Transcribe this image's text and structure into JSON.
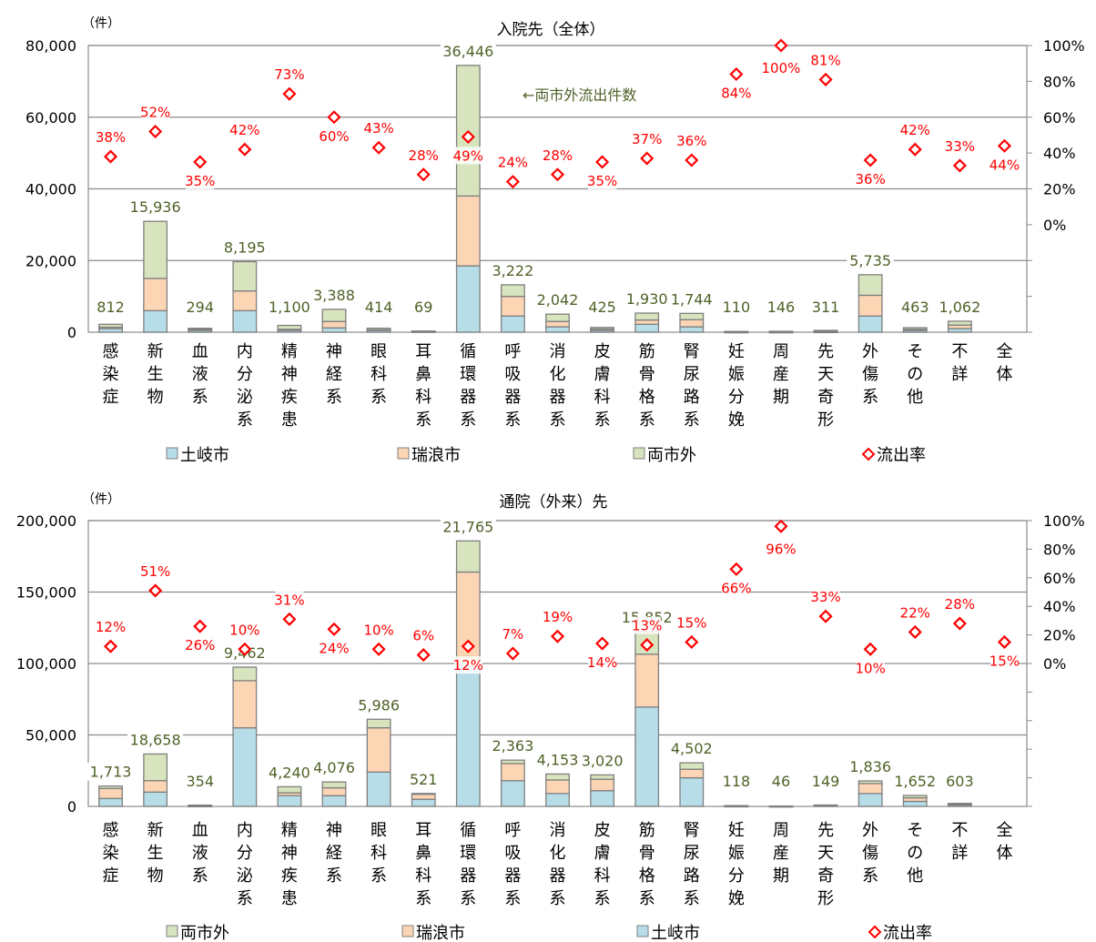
{
  "legend_markers": {
    "square": "□",
    "diamond": "◇"
  },
  "chart_data": [
    {
      "type": "bar",
      "stacked": true,
      "title": "入院先（全体）",
      "unit_label": "（件）",
      "categories": [
        [
          "感",
          "染",
          "症"
        ],
        [
          "新",
          "生",
          "物"
        ],
        [
          "血",
          "液",
          "系"
        ],
        [
          "内",
          "分",
          "泌",
          "系"
        ],
        [
          "精",
          "神",
          "疾",
          "患"
        ],
        [
          "神",
          "経",
          "系"
        ],
        [
          "眼",
          "科",
          "系"
        ],
        [
          "耳",
          "鼻",
          "科",
          "系"
        ],
        [
          "循",
          "環",
          "器",
          "系"
        ],
        [
          "呼",
          "吸",
          "器",
          "系"
        ],
        [
          "消",
          "化",
          "器",
          "系"
        ],
        [
          "皮",
          "膚",
          "科",
          "系"
        ],
        [
          "筋",
          "骨",
          "格",
          "系"
        ],
        [
          "腎",
          "尿",
          "路",
          "系"
        ],
        [
          "妊",
          "娠",
          "分",
          "娩"
        ],
        [
          "周",
          "産",
          "期"
        ],
        [
          "先",
          "天",
          "奇",
          "形"
        ],
        [
          "外",
          "傷",
          "系"
        ],
        [
          "そ",
          "の",
          "他"
        ],
        [
          "不",
          "詳"
        ],
        [
          "全",
          "体"
        ]
      ],
      "series": [
        {
          "name": "土岐市",
          "color": "#b7dde8",
          "values": [
            1000,
            6000,
            500,
            6000,
            500,
            1200,
            500,
            150,
            18500,
            4500,
            1500,
            500,
            2200,
            1500,
            50,
            50,
            100,
            4500,
            500,
            1000,
            0
          ]
        },
        {
          "name": "瑞浪市",
          "color": "#fcd5b5",
          "values": [
            400,
            9000,
            300,
            5500,
            300,
            1800,
            200,
            100,
            19500,
            5500,
            1500,
            400,
            1200,
            2000,
            50,
            50,
            100,
            5800,
            300,
            1000,
            0
          ]
        },
        {
          "name": "両市外",
          "color": "#d7e4bd",
          "values": [
            812,
            15936,
            294,
            8195,
            1100,
            3388,
            414,
            69,
            36446,
            3222,
            2042,
            425,
            1930,
            1744,
            110,
            146,
            311,
            5735,
            463,
            1062,
            0
          ]
        }
      ],
      "outflow_label_values": [
        "812",
        "15,936",
        "294",
        "8,195",
        "1,100",
        "3,388",
        "414",
        "69",
        "36,446",
        "3,222",
        "2,042",
        "425",
        "1,930",
        "1,744",
        "110",
        "146",
        "311",
        "5,735",
        "463",
        "1,062",
        ""
      ],
      "outflow_rate": {
        "name": "流出率",
        "values": [
          38,
          52,
          35,
          42,
          73,
          60,
          43,
          28,
          49,
          24,
          28,
          35,
          37,
          36,
          84,
          100,
          81,
          36,
          42,
          33,
          44
        ],
        "labels": [
          "38%",
          "52%",
          "35%",
          "42%",
          "73%",
          "60%",
          "43%",
          "28%",
          "49%",
          "24%",
          "28%",
          "35%",
          "37%",
          "36%",
          "84%",
          "100%",
          "81%",
          "36%",
          "42%",
          "33%",
          "44%"
        ]
      },
      "y_left": {
        "min": 0,
        "max": 80000,
        "ticks": [
          "0",
          "20,000",
          "40,000",
          "60,000",
          "80,000"
        ]
      },
      "y_right": {
        "min": -60,
        "max": 100,
        "ticks": [
          "0%",
          "20%",
          "40%",
          "60%",
          "80%",
          "100%"
        ]
      },
      "annotation": "←両市外流出件数",
      "legend_order": [
        "土岐市",
        "瑞浪市",
        "両市外",
        "流出率"
      ]
    },
    {
      "type": "bar",
      "stacked": true,
      "title": "通院（外来）先",
      "unit_label": "（件）",
      "categories": [
        [
          "感",
          "染",
          "症"
        ],
        [
          "新",
          "生",
          "物"
        ],
        [
          "血",
          "液",
          "系"
        ],
        [
          "内",
          "分",
          "泌",
          "系"
        ],
        [
          "精",
          "神",
          "疾",
          "患"
        ],
        [
          "神",
          "経",
          "系"
        ],
        [
          "眼",
          "科",
          "系"
        ],
        [
          "耳",
          "鼻",
          "科",
          "系"
        ],
        [
          "循",
          "環",
          "器",
          "系"
        ],
        [
          "呼",
          "吸",
          "器",
          "系"
        ],
        [
          "消",
          "化",
          "器",
          "系"
        ],
        [
          "皮",
          "膚",
          "科",
          "系"
        ],
        [
          "筋",
          "骨",
          "格",
          "系"
        ],
        [
          "腎",
          "尿",
          "路",
          "系"
        ],
        [
          "妊",
          "娠",
          "分",
          "娩"
        ],
        [
          "周",
          "産",
          "期"
        ],
        [
          "先",
          "天",
          "奇",
          "形"
        ],
        [
          "外",
          "傷",
          "系"
        ],
        [
          "そ",
          "の",
          "他"
        ],
        [
          "不",
          "詳"
        ],
        [
          "全",
          "体"
        ]
      ],
      "series": [
        {
          "name": "土岐市",
          "color": "#b7dde8",
          "values": [
            5500,
            10000,
            300,
            55000,
            7500,
            7500,
            24000,
            5000,
            98000,
            18000,
            9000,
            11000,
            69500,
            20000,
            200,
            100,
            500,
            9000,
            3500,
            1000,
            0
          ]
        },
        {
          "name": "瑞浪市",
          "color": "#fcd5b5",
          "values": [
            7000,
            8000,
            200,
            33000,
            2000,
            5500,
            31000,
            3500,
            66000,
            12000,
            9500,
            8000,
            37000,
            6000,
            200,
            100,
            300,
            7000,
            2500,
            500,
            0
          ]
        },
        {
          "name": "両市外",
          "color": "#d7e4bd",
          "values": [
            1713,
            18658,
            354,
            9462,
            4240,
            4076,
            5986,
            521,
            21765,
            2363,
            4153,
            3020,
            15852,
            4502,
            118,
            46,
            149,
            1836,
            1652,
            603,
            0
          ]
        }
      ],
      "outflow_label_values": [
        "1,713",
        "18,658",
        "354",
        "9,462",
        "4,240",
        "4,076",
        "5,986",
        "521",
        "21,765",
        "2,363",
        "4,153",
        "3,020",
        "15,852",
        "4,502",
        "118",
        "46",
        "149",
        "1,836",
        "1,652",
        "603",
        ""
      ],
      "outflow_rate": {
        "name": "流出率",
        "values": [
          12,
          51,
          26,
          10,
          31,
          24,
          10,
          6,
          12,
          7,
          19,
          14,
          13,
          15,
          66,
          96,
          33,
          10,
          22,
          28,
          15
        ],
        "labels": [
          "12%",
          "51%",
          "26%",
          "10%",
          "31%",
          "24%",
          "10%",
          "6%",
          "12%",
          "7%",
          "19%",
          "14%",
          "13%",
          "15%",
          "66%",
          "96%",
          "33%",
          "10%",
          "22%",
          "28%",
          "15%"
        ]
      },
      "y_left": {
        "min": 0,
        "max": 200000,
        "ticks": [
          "0",
          "50,000",
          "100,000",
          "150,000",
          "200,000"
        ]
      },
      "y_right": {
        "min": -100,
        "max": 100,
        "ticks": [
          "0%",
          "20%",
          "40%",
          "60%",
          "80%",
          "100%"
        ]
      },
      "legend_order": [
        "両市外",
        "瑞浪市",
        "土岐市",
        "流出率"
      ]
    }
  ]
}
